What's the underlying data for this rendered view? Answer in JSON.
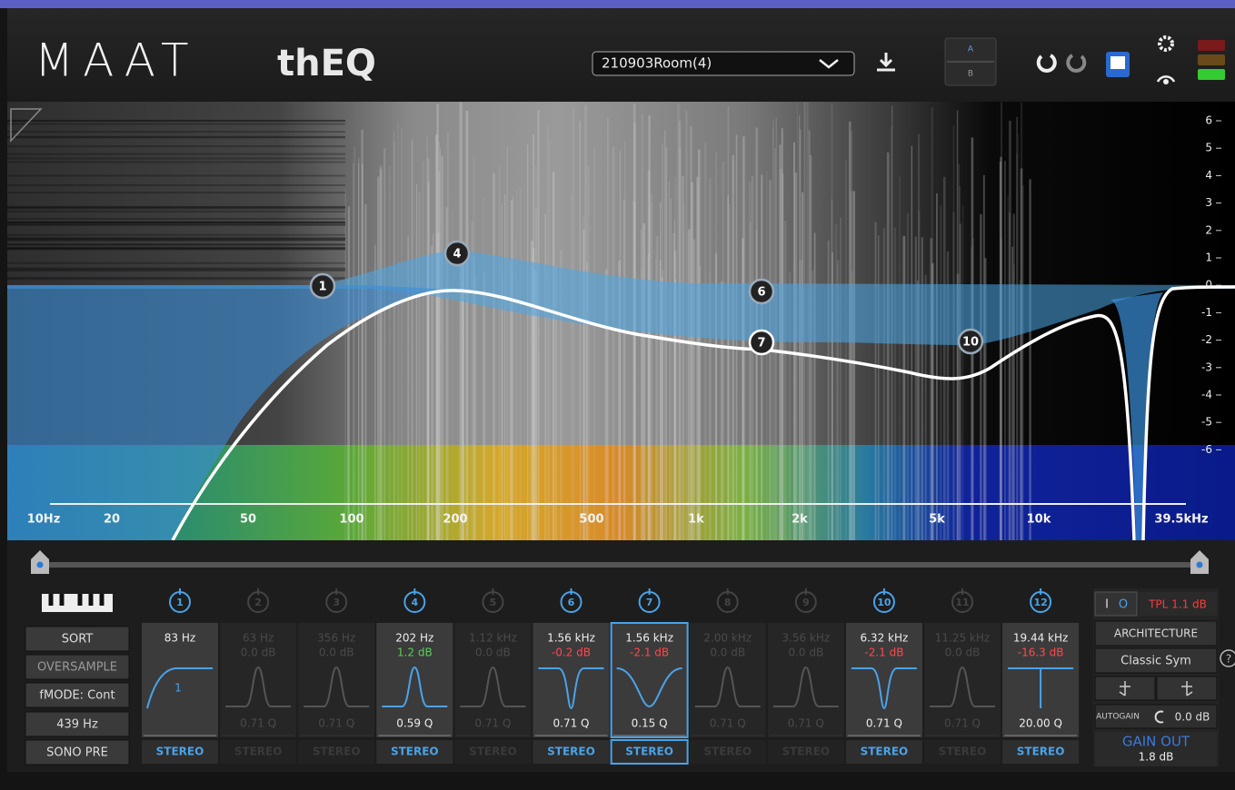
{
  "header": {
    "brand": "MAAT",
    "product": "thEQ",
    "preset": "210903Room(4)",
    "ab": [
      "A",
      "B"
    ]
  },
  "graph": {
    "db_scale": [
      6,
      5,
      4,
      3,
      2,
      1,
      0,
      -1,
      -2,
      -3,
      -4,
      -5,
      -6
    ],
    "freq_labels": [
      "10Hz",
      "20",
      "50",
      "100",
      "200",
      "500",
      "1k",
      "2k",
      "5k",
      "10k",
      "39.5kHz"
    ],
    "nodes": [
      "1",
      "4",
      "6",
      "7",
      "10"
    ]
  },
  "left_buttons": [
    "SORT",
    "OVERSAMPLE",
    "fMODE: Cont",
    "439 Hz",
    "SONO PRE"
  ],
  "bands": [
    {
      "number": "1",
      "freq": "83 Hz",
      "slope": "1",
      "output": "STEREO",
      "active": true
    },
    {
      "number": "2",
      "freq": "63 Hz",
      "gain": "0.0 dB",
      "q": "0.71 Q",
      "output": "STEREO",
      "active": false
    },
    {
      "number": "3",
      "freq": "356 Hz",
      "gain": "0.0 dB",
      "q": "0.71 Q",
      "output": "STEREO",
      "active": false
    },
    {
      "number": "4",
      "freq": "202 Hz",
      "gain": "1.2 dB",
      "q": "0.59 Q",
      "output": "STEREO",
      "active": true
    },
    {
      "number": "5",
      "freq": "1.12 kHz",
      "gain": "0.0 dB",
      "q": "0.71 Q",
      "output": "STEREO",
      "active": false
    },
    {
      "number": "6",
      "freq": "1.56 kHz",
      "gain": "-0.2 dB",
      "q": "0.71 Q",
      "output": "STEREO",
      "active": true
    },
    {
      "number": "7",
      "freq": "1.56 kHz",
      "gain": "-2.1 dB",
      "q": "0.15 Q",
      "output": "STEREO",
      "active": true,
      "selected": true
    },
    {
      "number": "8",
      "freq": "2.00 kHz",
      "gain": "0.0 dB",
      "q": "0.71 Q",
      "output": "STEREO",
      "active": false
    },
    {
      "number": "9",
      "freq": "3.56 kHz",
      "gain": "0.0 dB",
      "q": "0.71 Q",
      "output": "STEREO",
      "active": false
    },
    {
      "number": "10",
      "freq": "6.32 kHz",
      "gain": "-2.1 dB",
      "q": "0.71 Q",
      "output": "STEREO",
      "active": true
    },
    {
      "number": "11",
      "freq": "11.25 kHz",
      "gain": "0.0 dB",
      "q": "0.71 Q",
      "output": "STEREO",
      "active": false
    },
    {
      "number": "12",
      "freq": "19.44 kHz",
      "gain": "-16.3 dB",
      "q": "20.00 Q",
      "output": "STEREO",
      "active": true
    }
  ],
  "right_panel": {
    "io": [
      "I",
      "O"
    ],
    "tpl": "TPL 1.1 dB",
    "architecture": "ARCHITECTURE",
    "mode": "Classic Sym",
    "autogain": "AUTOGAIN",
    "autogain_value": "0.0 dB",
    "gain_out": "GAIN OUT",
    "gain_out_value": "1.8 dB",
    "help": "?"
  }
}
